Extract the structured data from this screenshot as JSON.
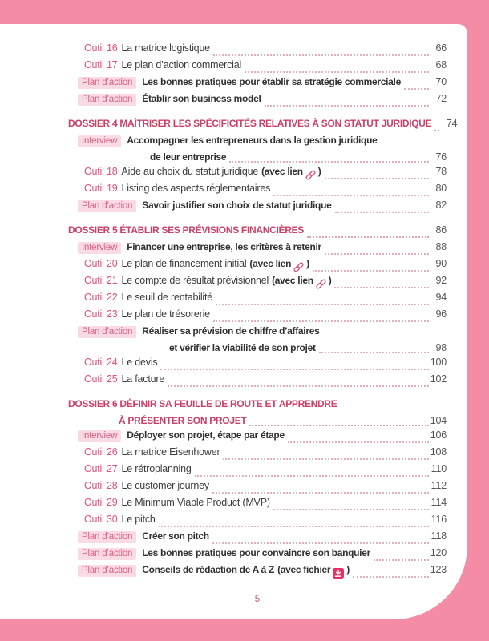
{
  "page": {
    "footer_page_number": "5"
  },
  "colors": {
    "frame_pink": "#f58ca6",
    "section_rose": "#cc4067",
    "outil_label_pink": "#e0517a",
    "badge_background": "#fadae4",
    "badge_text": "#d96080",
    "file_icon_pink": "#ee2d64"
  },
  "toc": {
    "rows": [
      {
        "type": "outil",
        "label": "Outil 16",
        "title": "La matrice logistique",
        "page": "66"
      },
      {
        "type": "outil",
        "label": "Outil 17",
        "title": "Le plan d’action commercial",
        "page": "68"
      },
      {
        "type": "plan",
        "label": "Plan d’action",
        "title": "Les bonnes pratiques pour établir sa stratégie commerciale",
        "page": "70"
      },
      {
        "type": "plan",
        "label": "Plan d’action",
        "title": "Établir son business model",
        "page": "72"
      },
      {
        "type": "dossier",
        "title": "DOSSIER 4 MAÎTRISER LES SPÉCIFICITÉS RELATIVES À SON STATUT JURIDIQUE",
        "page": "74",
        "gap_before": true
      },
      {
        "type": "interview",
        "label": "Interview",
        "title": "Accompagner les entrepreneurs dans la gestion juridique",
        "title2": "de leur entreprise",
        "page": "76"
      },
      {
        "type": "outil",
        "label": "Outil 18",
        "title": "Aide au choix du statut juridique",
        "suffix_open": "(avec lien",
        "icon": "link",
        "suffix_close": ")",
        "page": "78"
      },
      {
        "type": "outil",
        "label": "Outil 19",
        "title": "Listing des aspects réglementaires",
        "page": "80"
      },
      {
        "type": "plan",
        "label": "Plan d’action",
        "title": "Savoir justifier son choix de statut juridique",
        "page": "82"
      },
      {
        "type": "dossier",
        "title": "DOSSIER 5 ÉTABLIR SES PRÉVISIONS FINANCIÈRES",
        "page": "86",
        "gap_before": true
      },
      {
        "type": "interview",
        "label": "Interview",
        "title": "Financer une entreprise, les critères à retenir",
        "page": "88"
      },
      {
        "type": "outil",
        "label": "Outil 20",
        "title": "Le plan de financement initial",
        "suffix_open": "(avec lien",
        "icon": "link",
        "suffix_close": ")",
        "page": "90"
      },
      {
        "type": "outil",
        "label": "Outil 21",
        "title": "Le compte de résultat prévisionnel",
        "suffix_open": "(avec lien",
        "icon": "link",
        "suffix_close": ")",
        "page": "92"
      },
      {
        "type": "outil",
        "label": "Outil 22",
        "title": "Le seuil de rentabilité",
        "page": "94"
      },
      {
        "type": "outil",
        "label": "Outil 23",
        "title": "Le plan de trésorerie",
        "page": "96"
      },
      {
        "type": "plan",
        "label": "Plan d’action",
        "title": "Réaliser sa prévision de chiffre d’affaires",
        "title2": "et vérifier la viabilité de son projet",
        "page": "98"
      },
      {
        "type": "outil",
        "label": "Outil 24",
        "title": "Le devis",
        "page": "100"
      },
      {
        "type": "outil",
        "label": "Outil 25",
        "title": "La facture",
        "page": "102"
      },
      {
        "type": "dossier",
        "title": "DOSSIER 6 DÉFINIR SA FEUILLE DE ROUTE ET APPRENDRE",
        "title2": "À PRÉSENTER SON PROJET",
        "page": "104",
        "gap_before": true
      },
      {
        "type": "interview",
        "label": "Interview",
        "title": "Déployer son projet, étape par étape",
        "page": "106"
      },
      {
        "type": "outil",
        "label": "Outil 26",
        "title": "La matrice Eisenhower",
        "page": "108"
      },
      {
        "type": "outil",
        "label": "Outil 27",
        "title": "Le rétroplanning",
        "page": "110"
      },
      {
        "type": "outil",
        "label": "Outil 28",
        "title": "Le customer journey",
        "page": "112"
      },
      {
        "type": "outil",
        "label": "Outil 29",
        "title": "Le Minimum Viable Product (MVP)",
        "page": "114"
      },
      {
        "type": "outil",
        "label": "Outil 30",
        "title": "Le pitch",
        "page": "116"
      },
      {
        "type": "plan",
        "label": "Plan d’action",
        "title": "Créer son pitch",
        "page": "118"
      },
      {
        "type": "plan",
        "label": "Plan d’action",
        "title": "Les bonnes pratiques pour convaincre son banquier",
        "page": "120"
      },
      {
        "type": "plan",
        "label": "Plan d’action",
        "title": "Conseils de rédaction de A à Z",
        "suffix_open": "(avec fichier",
        "icon": "download",
        "suffix_close": ")",
        "page": "123"
      }
    ]
  }
}
